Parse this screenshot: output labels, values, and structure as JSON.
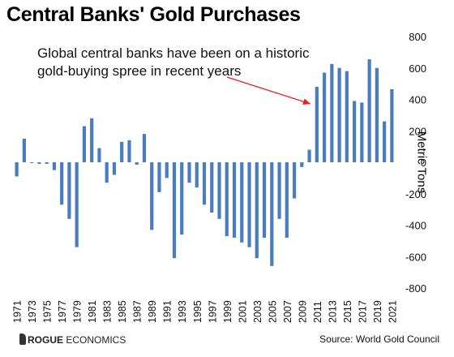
{
  "chart_data": {
    "type": "bar",
    "title": "Central Banks' Gold Purchases",
    "ylabel": "Metric Tons",
    "ylim": [
      -800,
      800
    ],
    "yticks": [
      800,
      600,
      400,
      200,
      0,
      -200,
      -400,
      -600,
      -800
    ],
    "xtick_labels": [
      "1971",
      "1973",
      "1975",
      "1977",
      "1979",
      "1981",
      "1983",
      "1985",
      "1987",
      "1989",
      "1991",
      "1993",
      "1995",
      "1997",
      "1999",
      "2001",
      "2003",
      "2005",
      "2007",
      "2009",
      "2011",
      "2013",
      "2015",
      "2017",
      "2019",
      "2021"
    ],
    "categories": [
      "1971",
      "1972",
      "1973",
      "1974",
      "1975",
      "1976",
      "1977",
      "1978",
      "1979",
      "1980",
      "1981",
      "1982",
      "1983",
      "1984",
      "1985",
      "1986",
      "1987",
      "1988",
      "1989",
      "1990",
      "1991",
      "1992",
      "1993",
      "1994",
      "1995",
      "1996",
      "1997",
      "1998",
      "1999",
      "2000",
      "2001",
      "2002",
      "2003",
      "2004",
      "2005",
      "2006",
      "2007",
      "2008",
      "2009",
      "2010",
      "2011",
      "2012",
      "2013",
      "2014",
      "2015",
      "2016",
      "2017",
      "2018",
      "2019",
      "2020",
      "2021"
    ],
    "values": [
      -90,
      150,
      -5,
      -10,
      -10,
      -50,
      -270,
      -360,
      -540,
      230,
      280,
      90,
      -130,
      -80,
      130,
      140,
      -15,
      180,
      -430,
      -190,
      -100,
      -610,
      -460,
      -130,
      -160,
      -270,
      -320,
      -360,
      -470,
      -480,
      -510,
      -540,
      -610,
      -480,
      -660,
      -360,
      -480,
      -230,
      -30,
      80,
      480,
      570,
      625,
      600,
      580,
      390,
      380,
      655,
      600,
      260,
      465
    ],
    "bar_color": "#4a7cc0",
    "annotation": "Global central banks have been on a historic gold-buying spree in recent years",
    "annotation_color": "#e82020",
    "grid": false
  },
  "footer": {
    "brand_bold": "ROGUE",
    "brand_rest": " ECONOMICS",
    "source": "Source: World Gold Council"
  }
}
